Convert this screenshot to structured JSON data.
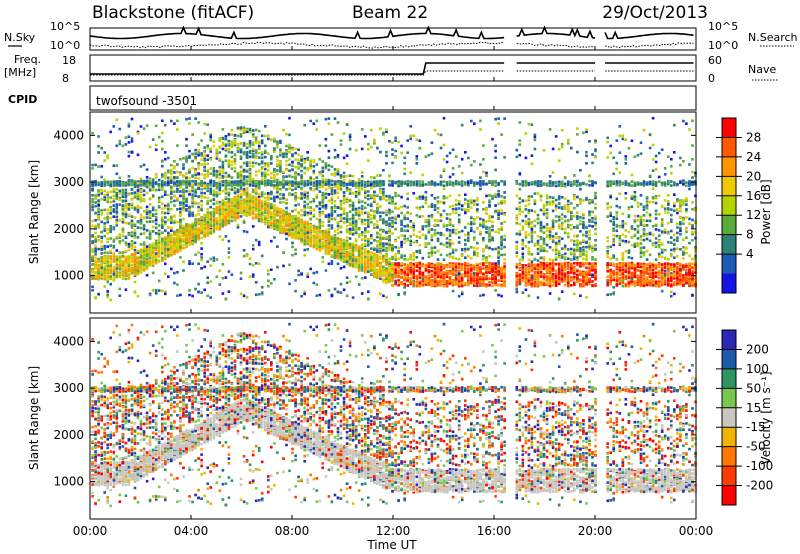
{
  "header": {
    "title": "Blackstone (fitACF)",
    "beam": "Beam 22",
    "date": "29/Oct/2013"
  },
  "aux_labels": {
    "nsky": "N.Sky",
    "nsearch": "N.Search",
    "freq_line1": "Freq.",
    "freq_line2": "[MHz]",
    "nave": "Nave",
    "cpid": "CPID",
    "cpid_value": "twofsound -3501",
    "noise_ticks": [
      "10^5",
      "10^0"
    ],
    "freq_ticks": [
      "18",
      "8"
    ],
    "nave_ticks": [
      "60",
      "0"
    ]
  },
  "chart_data": [
    {
      "type": "heatmap",
      "name": "power",
      "ylabel": "Slant Range [km]",
      "ylim": [
        200,
        4500
      ],
      "yticks": [
        1000,
        2000,
        3000,
        4000
      ],
      "xlim": [
        0,
        24
      ],
      "colorbar": {
        "label": "Power [dB]",
        "ticks": [
          "28",
          "24",
          "20",
          "16",
          "12",
          "8",
          "4"
        ],
        "colors": [
          "#ff0000",
          "#ff5a00",
          "#ff9600",
          "#f0c800",
          "#b4d200",
          "#5aaa3c",
          "#2d8278",
          "#1e5ab4",
          "#1414e6"
        ]
      }
    },
    {
      "type": "heatmap",
      "name": "velocity",
      "ylabel": "Velocity [m s-1]",
      "ylim": [
        200,
        4500
      ],
      "yticks": [
        1000,
        2000,
        3000,
        4000
      ],
      "xlim": [
        0,
        24
      ],
      "ground_scatter_color": "#c8c8c0",
      "colorbar": {
        "label": "Velocity [m s-1]",
        "ticks": [
          "200",
          "100",
          "50",
          "15",
          "-15",
          "-50",
          "-100",
          "-200"
        ],
        "colors": [
          "#2828b4",
          "#1e5aaa",
          "#2d9664",
          "#78c850",
          "#c8c8c0",
          "#f0b400",
          "#ff7800",
          "#ff3c00",
          "#ff0000"
        ]
      }
    }
  ],
  "time_axis": {
    "label": "Time UT",
    "ticks": [
      "00:00",
      "04:00",
      "08:00",
      "12:00",
      "16:00",
      "20:00",
      "00:00"
    ]
  }
}
